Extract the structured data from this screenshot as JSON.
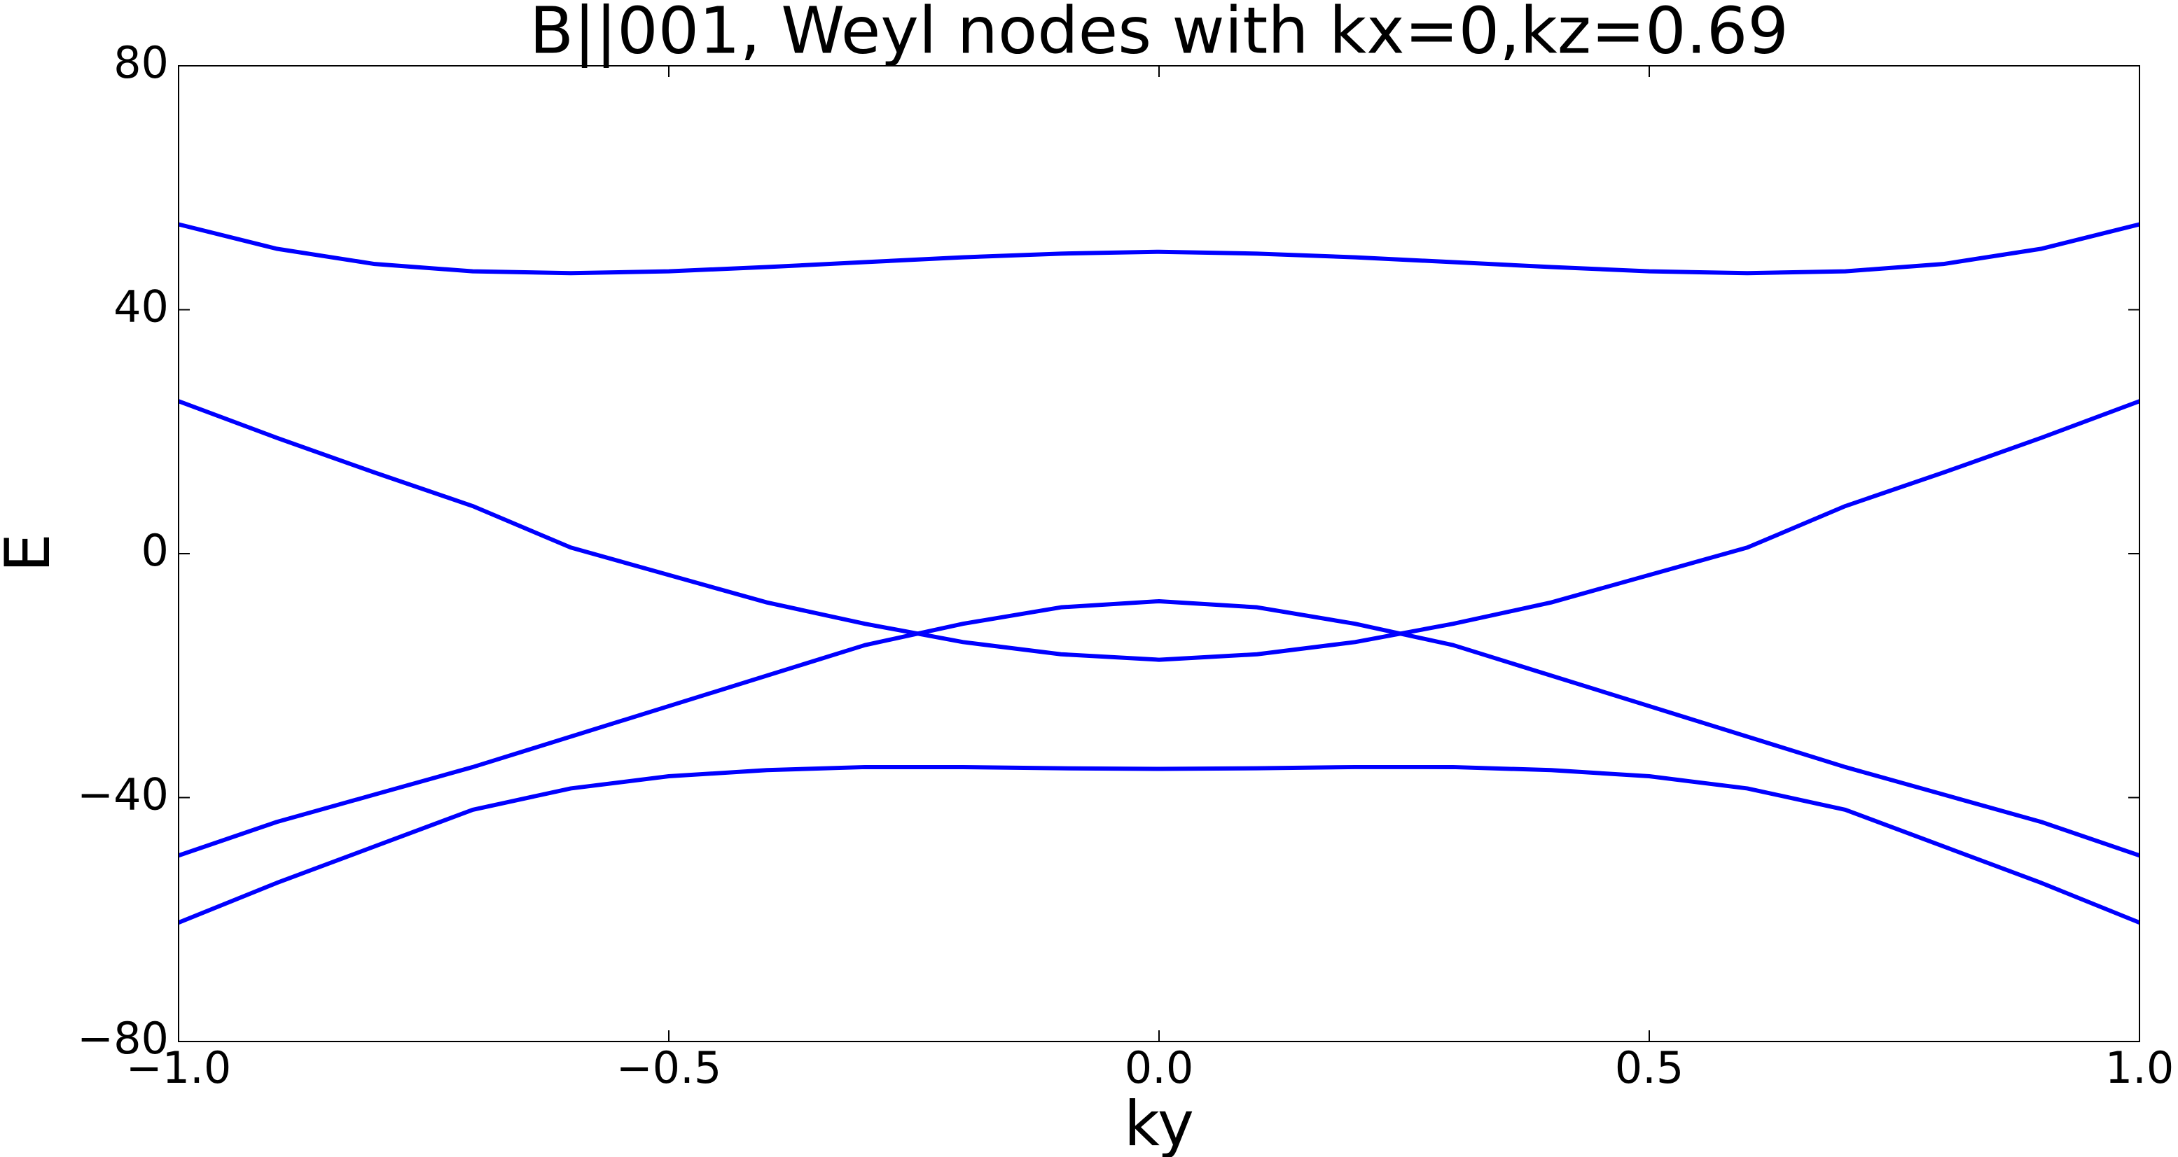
{
  "chart_data": {
    "type": "line",
    "title": "B||001, Weyl nodes with kx=0,kz=0.69",
    "xlabel": "ky",
    "ylabel": "E",
    "x": [
      -1.0,
      -0.9,
      -0.8,
      -0.7,
      -0.6,
      -0.5,
      -0.4,
      -0.3,
      -0.2,
      -0.1,
      0.0,
      0.1,
      0.2,
      0.3,
      0.4,
      0.5,
      0.6,
      0.7,
      0.8,
      0.9,
      1.0
    ],
    "series": [
      {
        "color": "#0000ff",
        "values": [
          54,
          50,
          47.5,
          46.3,
          46,
          46.3,
          47,
          47.8,
          48.6,
          49.2,
          49.5,
          49.2,
          48.6,
          47.8,
          47,
          46.3,
          46,
          46.3,
          47.5,
          50,
          54
        ]
      },
      {
        "color": "#0000ff",
        "values": [
          25,
          19,
          13.3,
          7.8,
          1,
          -3.5,
          -8,
          -11.5,
          -14.5,
          -16.5,
          -17.4,
          -16.5,
          -14.5,
          -11.5,
          -8,
          -3.5,
          1,
          7.8,
          13.3,
          19,
          25
        ]
      },
      {
        "color": "#0000ff",
        "values": [
          -49.5,
          -44,
          -39.5,
          -35,
          -30,
          -25,
          -20,
          -15,
          -11.5,
          -8.8,
          -7.8,
          -8.8,
          -11.5,
          -15,
          -20,
          -25,
          -30,
          -35,
          -39.5,
          -44,
          -49.5
        ]
      },
      {
        "color": "#0000ff",
        "values": [
          -60.5,
          -54,
          -48,
          -42,
          -38.5,
          -36.5,
          -35.5,
          -35,
          -35,
          -35.2,
          -35.3,
          -35.2,
          -35,
          -35,
          -35.5,
          -36.5,
          -38.5,
          -42,
          -48,
          -54,
          -60.5
        ]
      }
    ],
    "xlim": [
      -1.0,
      1.0
    ],
    "xticks": [
      {
        "value": -1.0,
        "label": "−1.0"
      },
      {
        "value": -0.5,
        "label": "−0.5"
      },
      {
        "value": 0.0,
        "label": "0.0"
      },
      0.5,
      {
        "value": 1.0,
        "label": "1.0"
      }
    ],
    "ylim": [
      -80,
      80
    ],
    "yticks": [
      {
        "value": -80,
        "label": "−80"
      },
      {
        "value": -40,
        "label": "−40"
      },
      0,
      40,
      80
    ],
    "grid": false
  }
}
